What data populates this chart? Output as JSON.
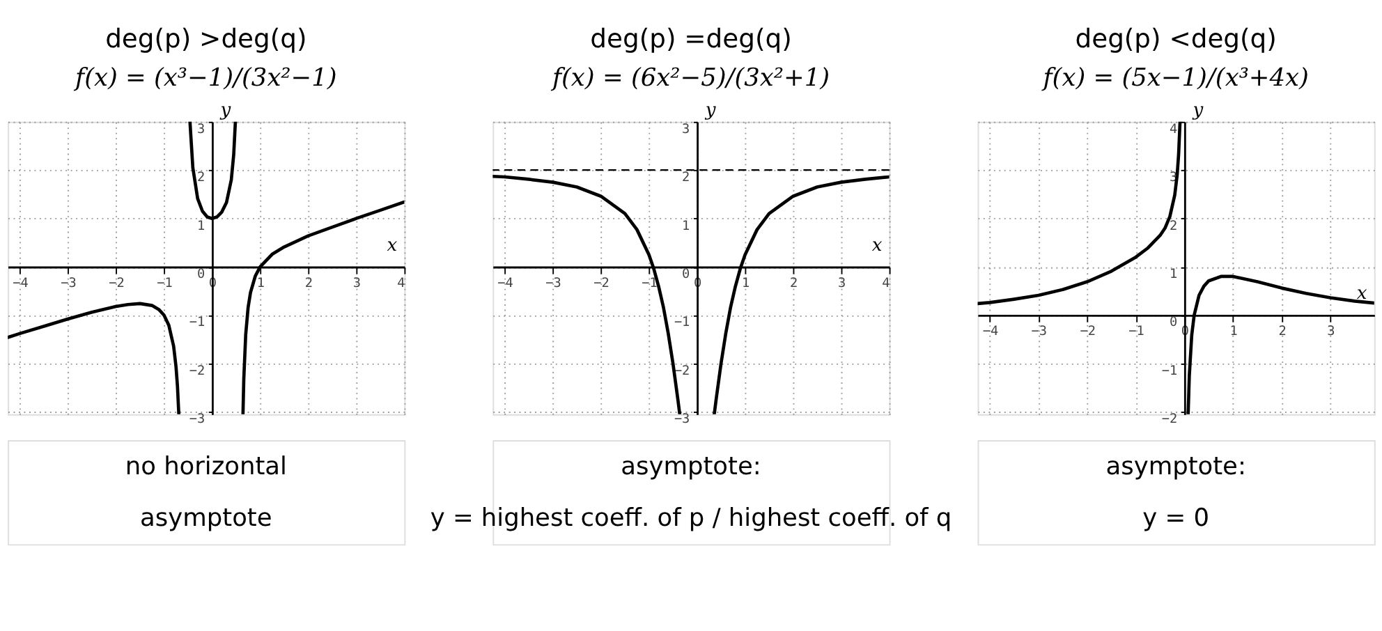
{
  "chart_data": [
    {
      "type": "line",
      "title": "deg(p) >deg(q)",
      "subtitle": "f(x) = (x³−1)/(3x²−1)",
      "xlabel": "x",
      "ylabel": "y",
      "xlim": [
        -4.25,
        4
      ],
      "ylim": [
        -3.05,
        3
      ],
      "xticks": [
        -4,
        -3,
        -2,
        -1,
        0,
        1,
        2,
        3,
        4
      ],
      "yticks": [
        -3,
        -2,
        -1,
        0,
        1,
        2,
        3
      ],
      "grid": true,
      "series": [
        {
          "color": "#000000",
          "x": [
            -4.25,
            -4,
            -3.5,
            -3,
            -2.5,
            -2,
            -1.75,
            -1.5,
            -1.25,
            -1.1,
            -1,
            -0.9,
            -0.8,
            -0.75,
            -0.72,
            -0.692
          ],
          "values": [
            -1.46,
            -1.38,
            -1.23,
            -1.08,
            -0.94,
            -0.82,
            -0.78,
            -0.76,
            -0.8,
            -0.89,
            -1,
            -1.21,
            -1.64,
            -2.07,
            -2.47,
            -3.05
          ]
        },
        {
          "color": "#000000",
          "x": [
            -0.46,
            -0.4,
            -0.3,
            -0.2,
            -0.1,
            0,
            0.1,
            0.2,
            0.3,
            0.4,
            0.45,
            0.485
          ],
          "values": [
            3,
            2.05,
            1.41,
            1.15,
            1.03,
            1,
            1.03,
            1.13,
            1.33,
            1.8,
            2.32,
            3
          ]
        },
        {
          "color": "#000000",
          "x": [
            0.643,
            0.66,
            0.7,
            0.75,
            0.8,
            0.9,
            1,
            1.25,
            1.5,
            2,
            2.5,
            3,
            3.5,
            4
          ],
          "values": [
            -3.05,
            -2.32,
            -1.4,
            -0.84,
            -0.53,
            -0.19,
            0,
            0.26,
            0.41,
            0.64,
            0.82,
            1,
            1.17,
            1.34
          ]
        }
      ],
      "annotations": [
        "no horizontal",
        "asymptote"
      ]
    },
    {
      "type": "line",
      "title": "deg(p) =deg(q)",
      "subtitle": "f(x) = (6x²−5)/(3x²+1)",
      "xlabel": "x",
      "ylabel": "y",
      "xlim": [
        -4.25,
        4
      ],
      "ylim": [
        -3.05,
        3
      ],
      "xticks": [
        -4,
        -3,
        -2,
        -1,
        0,
        1,
        2,
        3,
        4
      ],
      "yticks": [
        -3,
        -2,
        -1,
        0,
        1,
        2,
        3
      ],
      "grid": true,
      "ref_lines": [
        {
          "axis": "y",
          "value": 2,
          "color": "#000000",
          "line_style": "dashed"
        }
      ],
      "series": [
        {
          "color": "#000000",
          "x": [
            -4.25,
            -4,
            -3.5,
            -3,
            -2.5,
            -2,
            -1.5,
            -1.25,
            -1,
            -0.9,
            -0.8,
            -0.7,
            -0.6,
            -0.5,
            -0.4,
            -0.359
          ],
          "values": [
            1.87,
            1.86,
            1.81,
            1.75,
            1.65,
            1.46,
            1.1,
            0.77,
            0.25,
            -0.04,
            -0.4,
            -0.83,
            -1.37,
            -2,
            -2.73,
            -3.05
          ]
        },
        {
          "color": "#000000",
          "x": [
            0.359,
            0.4,
            0.5,
            0.6,
            0.7,
            0.8,
            0.9,
            1,
            1.25,
            1.5,
            2,
            2.5,
            3,
            3.5,
            4
          ],
          "values": [
            -3.05,
            -2.73,
            -2,
            -1.37,
            -0.83,
            -0.4,
            -0.04,
            0.25,
            0.77,
            1.1,
            1.46,
            1.65,
            1.75,
            1.81,
            1.86
          ]
        }
      ],
      "annotations": [
        "asymptote:",
        "y = highest coeff. of p / highest coeff. of q"
      ]
    },
    {
      "type": "line",
      "title": "deg(p) <deg(q)",
      "subtitle": "f(x) = (5x−1)/(x³+4x)",
      "xlabel": "x",
      "ylabel": "y",
      "xlim": [
        -4.25,
        3.9
      ],
      "ylim": [
        -2.05,
        4
      ],
      "xticks": [
        -4,
        -3,
        -2,
        -1,
        0,
        1,
        2,
        3
      ],
      "yticks": [
        -2,
        -1,
        0,
        1,
        2,
        3,
        4
      ],
      "grid": true,
      "series": [
        {
          "color": "#000000",
          "x": [
            -4.25,
            -4,
            -3.5,
            -3,
            -2.5,
            -2,
            -1.5,
            -1,
            -0.75,
            -0.5,
            -0.4,
            -0.3,
            -0.2,
            -0.15,
            -0.12,
            -0.091
          ],
          "values": [
            0.24,
            0.26,
            0.33,
            0.41,
            0.53,
            0.69,
            0.91,
            1.2,
            1.39,
            1.65,
            1.8,
            2.04,
            2.48,
            2.9,
            3.32,
            4
          ]
        },
        {
          "color": "#000000",
          "x": [
            0.076,
            0.1,
            0.15,
            0.2,
            0.3,
            0.4,
            0.5,
            0.75,
            1,
            1.5,
            2,
            2.5,
            3,
            3.5,
            3.9
          ],
          "values": [
            -2.05,
            -1.25,
            -0.41,
            0,
            0.41,
            0.6,
            0.71,
            0.8,
            0.8,
            0.69,
            0.56,
            0.45,
            0.36,
            0.29,
            0.25
          ]
        }
      ],
      "annotations": [
        "asymptote:",
        "y = 0"
      ]
    }
  ]
}
